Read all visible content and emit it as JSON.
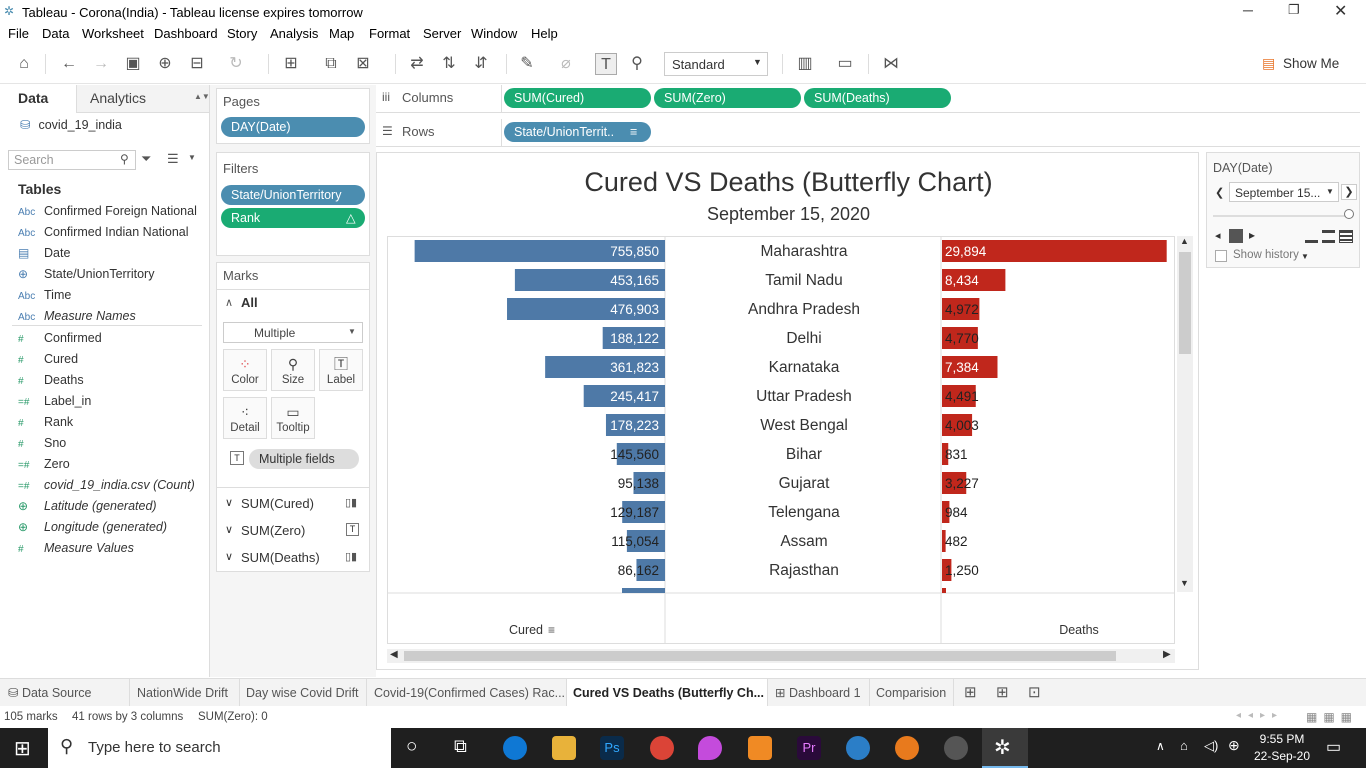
{
  "window": {
    "title": "Tableau - Corona(India) - Tableau license expires tomorrow"
  },
  "menu": [
    "File",
    "Data",
    "Worksheet",
    "Dashboard",
    "Story",
    "Analysis",
    "Map",
    "Format",
    "Server",
    "Window",
    "Help"
  ],
  "toolbar": {
    "fit_select": "Standard",
    "show_me": "Show Me"
  },
  "data_pane": {
    "tab_data": "Data",
    "tab_analytics": "Analytics",
    "datasource": "covid_19_india",
    "search_placeholder": "Search",
    "tables_header": "Tables",
    "fields": [
      {
        "icon": "Abc",
        "name": "Confirmed Foreign National"
      },
      {
        "icon": "Abc",
        "name": "Confirmed Indian National"
      },
      {
        "icon": "▤",
        "name": "Date"
      },
      {
        "icon": "⊕",
        "name": "State/UnionTerritory"
      },
      {
        "icon": "Abc",
        "name": "Time"
      },
      {
        "icon": "Abc",
        "name": "Measure Names"
      },
      {
        "icon": "#",
        "name": "Confirmed"
      },
      {
        "icon": "#",
        "name": "Cured"
      },
      {
        "icon": "#",
        "name": "Deaths"
      },
      {
        "icon": "=#",
        "name": "Label_in"
      },
      {
        "icon": "#",
        "name": "Rank"
      },
      {
        "icon": "#",
        "name": "Sno"
      },
      {
        "icon": "=#",
        "name": "Zero"
      },
      {
        "icon": "=#",
        "name": "covid_19_india.csv (Count)"
      },
      {
        "icon": "⊕",
        "name": "Latitude (generated)"
      },
      {
        "icon": "⊕",
        "name": "Longitude (generated)"
      },
      {
        "icon": "#",
        "name": "Measure Values"
      }
    ]
  },
  "pages": {
    "header": "Pages",
    "pill": "DAY(Date)"
  },
  "filters": {
    "header": "Filters",
    "pills": [
      "State/UnionTerritory",
      "Rank"
    ]
  },
  "marks": {
    "header": "Marks",
    "all": "All",
    "type": "Multiple",
    "buttons": [
      "Color",
      "Size",
      "Label",
      "Detail",
      "Tooltip"
    ],
    "multiple_fields": "Multiple fields",
    "measures": [
      "SUM(Cured)",
      "SUM(Zero)",
      "SUM(Deaths)"
    ]
  },
  "shelves": {
    "columns_label": "Columns",
    "columns": [
      "SUM(Cured)",
      "SUM(Zero)",
      "SUM(Deaths)"
    ],
    "rows_label": "Rows",
    "rows": [
      "State/UnionTerrit.."
    ]
  },
  "chart_data": {
    "type": "bar",
    "title": "Cured VS Deaths (Butterfly Chart)",
    "subtitle": "September 15, 2020",
    "categories": [
      "Maharashtra",
      "Tamil Nadu",
      "Andhra Pradesh",
      "Delhi",
      "Karnataka",
      "Uttar Pradesh",
      "West Bengal",
      "Bihar",
      "Gujarat",
      "Telengana",
      "Assam",
      "Rajasthan"
    ],
    "series": [
      {
        "name": "Cured",
        "values": [
          755850,
          453165,
          476903,
          188122,
          361823,
          245417,
          178223,
          145560,
          95138,
          129187,
          115054,
          86162
        ],
        "color": "#4e79a7",
        "labels": [
          "755,850",
          "453,165",
          "476,903",
          "188,122",
          "361,823",
          "245,417",
          "178,223",
          "145,560",
          "95,138",
          "129,187",
          "115,054",
          "86,162"
        ]
      },
      {
        "name": "Deaths",
        "values": [
          29894,
          8434,
          4972,
          4770,
          7384,
          4491,
          4003,
          831,
          3227,
          984,
          482,
          1250
        ],
        "color": "#c0271c",
        "labels": [
          "29,894",
          "8,434",
          "4,972",
          "4,770",
          "7,384",
          "4,491",
          "4,003",
          "831",
          "3,227",
          "984",
          "482",
          "1,250"
        ]
      }
    ],
    "xlabel_left": "Cured",
    "xlabel_right": "Deaths"
  },
  "page_card": {
    "title": "DAY(Date)",
    "value": "September 15...",
    "show_history": "Show history"
  },
  "sheet_tabs": [
    "Data Source",
    "NationWide Drift",
    "Day wise Covid Drift",
    "Covid-19(Confirmed Cases) Rac...",
    "Cured VS Deaths (Butterfly Ch...",
    "Dashboard 1",
    "Comparision"
  ],
  "status": {
    "marks": "105 marks",
    "rows": "41 rows by 3 columns",
    "sum": "SUM(Zero): 0"
  },
  "taskbar": {
    "search_placeholder": "Type here to search",
    "time": "9:55 PM",
    "date": "22-Sep-20"
  }
}
